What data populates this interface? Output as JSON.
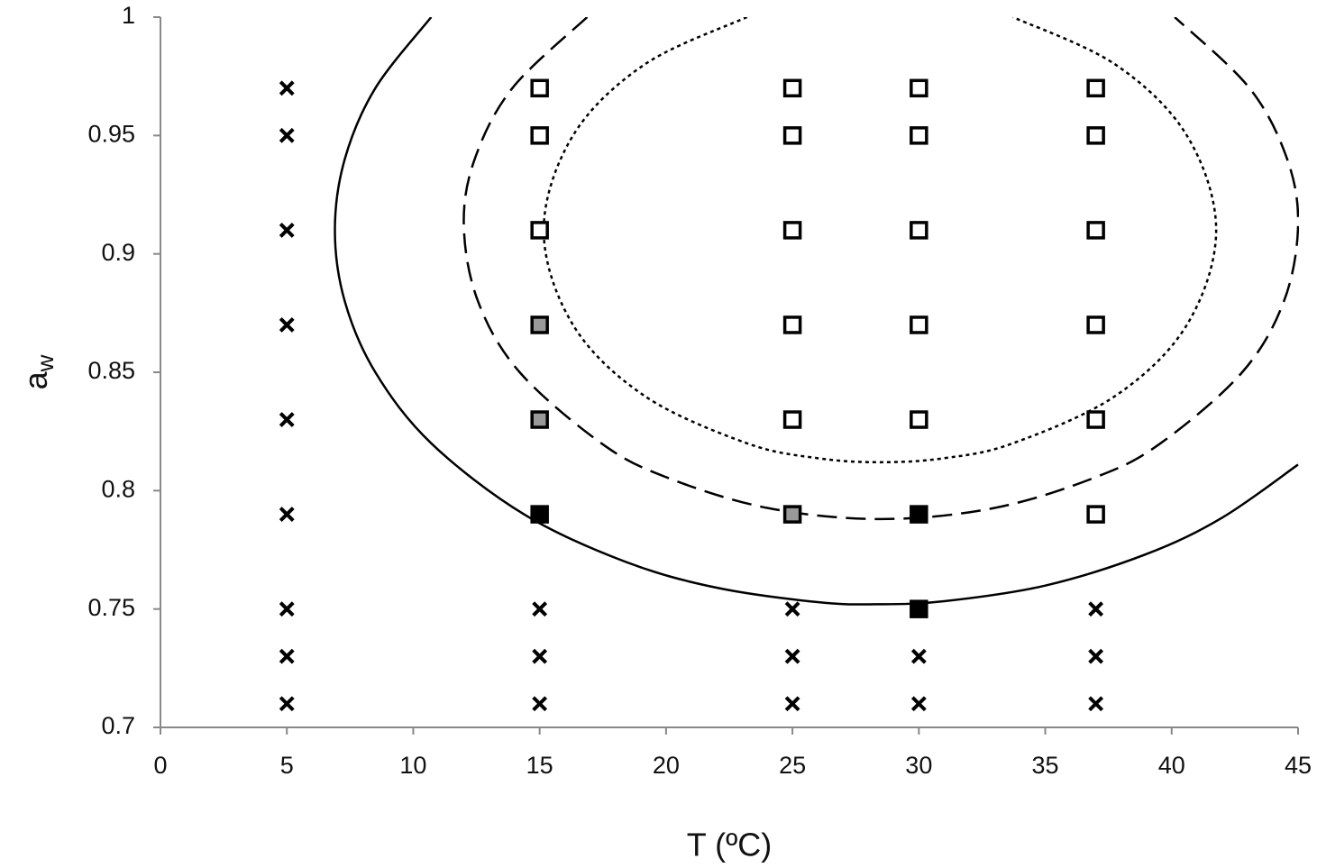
{
  "chart_data": {
    "type": "scatter",
    "xlabel": "T (ºC)",
    "ylabel": {
      "text": "a",
      "subscript": "w"
    },
    "xlim": [
      0,
      45
    ],
    "xticks": [
      0,
      5,
      10,
      15,
      20,
      25,
      30,
      35,
      40,
      45
    ],
    "ylim": [
      0.7,
      1
    ],
    "yticks": [
      0.7,
      0.75,
      0.8,
      0.85,
      0.9,
      0.95,
      1
    ],
    "axis_color": "#888888",
    "series": [
      {
        "marker": "x",
        "color": "#000000",
        "x": [
          5,
          5,
          5,
          5,
          5,
          5,
          5,
          5,
          5,
          15,
          15,
          15,
          25,
          25,
          25,
          30,
          30,
          37,
          37,
          37
        ],
        "values": [
          0.97,
          0.95,
          0.91,
          0.87,
          0.83,
          0.79,
          0.75,
          0.73,
          0.71,
          0.75,
          0.73,
          0.71,
          0.75,
          0.73,
          0.71,
          0.73,
          0.71,
          0.75,
          0.73,
          0.71
        ]
      },
      {
        "marker": "square",
        "color": "#ffffff",
        "x": [
          15,
          15,
          15,
          25,
          25,
          25,
          25,
          25,
          30,
          30,
          30,
          30,
          30,
          37,
          37,
          37,
          37,
          37,
          37
        ],
        "values": [
          0.97,
          0.95,
          0.91,
          0.97,
          0.95,
          0.91,
          0.87,
          0.83,
          0.97,
          0.95,
          0.91,
          0.87,
          0.83,
          0.97,
          0.95,
          0.91,
          0.87,
          0.83,
          0.79
        ]
      },
      {
        "marker": "square",
        "color": "#999999",
        "x": [
          15,
          15,
          25
        ],
        "values": [
          0.87,
          0.83,
          0.79
        ]
      },
      {
        "marker": "square",
        "color": "#000000",
        "x": [
          15,
          30,
          30
        ],
        "values": [
          0.79,
          0.79,
          0.75
        ]
      },
      {
        "marker": "line",
        "dash": "solid",
        "color": "#000000",
        "x": [
          10.71,
          8.5,
          7.29,
          6.9,
          7.29,
          8.5,
          10.71,
          14.38,
          18.38,
          22,
          26,
          28.3,
          31,
          35,
          39,
          42,
          45
        ],
        "values": [
          1,
          0.97,
          0.94,
          0.91,
          0.88,
          0.85,
          0.82,
          0.79,
          0.77,
          0.759,
          0.7529,
          0.752,
          0.7533,
          0.7599,
          0.7732,
          0.7886,
          0.811
        ]
      },
      {
        "marker": "line",
        "dash": "dashed",
        "color": "#000000",
        "x": [
          16.88,
          13.92,
          12.43,
          12,
          12.56,
          14.21,
          17.44,
          20,
          24,
          28.5,
          33,
          37,
          39.56,
          42.79,
          44.44,
          45,
          44.57,
          43.08,
          40.12
        ],
        "values": [
          1,
          0.97,
          0.94,
          0.912,
          0.88,
          0.85,
          0.82,
          0.8057,
          0.7927,
          0.788,
          0.7927,
          0.8057,
          0.82,
          0.85,
          0.88,
          0.912,
          0.94,
          0.97,
          1
        ]
      },
      {
        "marker": "line",
        "dash": "dotted",
        "color": "#000000",
        "x": [
          23.2,
          19.15,
          16.32,
          15.16,
          16.32,
          19.15,
          23.2,
          26,
          28.46,
          31,
          33.72,
          37.77,
          40.6,
          41.76,
          40.6,
          37.77,
          33.72
        ],
        "values": [
          1,
          0.98,
          0.95,
          0.91,
          0.87,
          0.84,
          0.82,
          0.8137,
          0.812,
          0.8137,
          0.82,
          0.84,
          0.87,
          0.91,
          0.95,
          0.98,
          1
        ]
      }
    ]
  }
}
